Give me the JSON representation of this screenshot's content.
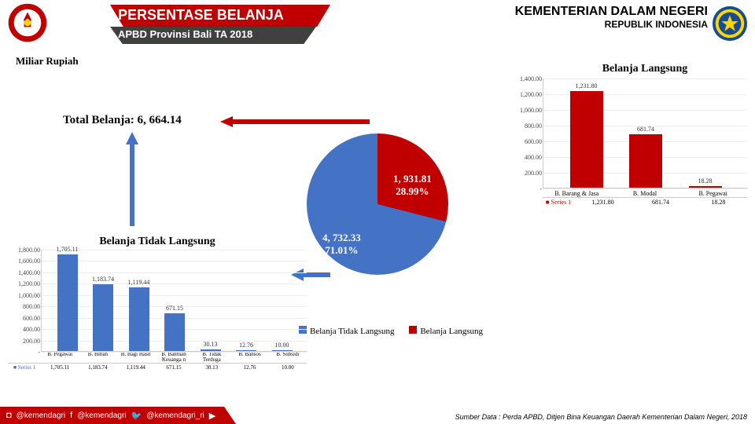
{
  "header": {
    "title": "PERSENTASE BELANJA",
    "subtitle": "APBD Provinsi Bali TA 2018",
    "ministry1": "KEMENTERIAN DALAM NEGERI",
    "ministry2": "REPUBLIK INDONESIA"
  },
  "yaxis_label": "Miliar Rupiah",
  "total_belanja_label": "Total Belanja: 6, 664.14",
  "chart_langsung": {
    "title": "Belanja Langsung",
    "ylim_max": 1400,
    "ticks": [
      "1,400.00",
      "1,200.00",
      "1,000.00",
      "800.00",
      "600.00",
      "400.00",
      "200.00",
      "-"
    ],
    "categories": [
      "B. Barang & Jasa",
      "B. Modal",
      "B. Pegawai"
    ],
    "values": [
      1231.8,
      681.74,
      18.28
    ],
    "value_labels": [
      "1,231.80",
      "681.74",
      "18.28"
    ],
    "bar_color": "#c00000",
    "series_name": "Series 1"
  },
  "pie": {
    "slice_a": {
      "label": "1, 931.81",
      "pct": "28.99%",
      "value": 1931.81,
      "color": "#c00000",
      "legend": "Belanja Langsung"
    },
    "slice_b": {
      "label": "4, 732.33",
      "pct": "71.01%",
      "value": 4732.33,
      "color": "#4472c4",
      "legend": "Belanja Tidak Langsung"
    }
  },
  "chart_tdk": {
    "title": "Belanja Tidak Langsung",
    "ylim_max": 1800,
    "ticks": [
      "1,800.00",
      "1,600.00",
      "1,400.00",
      "1,200.00",
      "1,000.00",
      "800.00",
      "600.00",
      "400.00",
      "200.00",
      "-"
    ],
    "categories": [
      "B. Pegawai",
      "B. Hibah",
      "B. Bagi Hasil",
      "B. Bantuan Keuanga n",
      "B. Tidak Terduga",
      "B. Bansos",
      "B. Subsidi"
    ],
    "values": [
      1705.11,
      1183.74,
      1119.44,
      671.15,
      30.13,
      12.76,
      10.0
    ],
    "value_labels": [
      "1,705.11",
      "1,183.74",
      "1,119.44",
      "671.15",
      "30.13",
      "12.76",
      "10.00"
    ],
    "bar_color": "#4472c4",
    "series_name": "Series 1"
  },
  "footer": {
    "h1": "@kemendagri",
    "h2": "@kemendagri",
    "h3": "@kemendagri_ri",
    "source": "Sumber Data : Perda APBD, Ditjen Bina Keuangan Daerah Kementerian Dalam Negeri, 2018"
  },
  "colors": {
    "red": "#c00000",
    "blue": "#4472c4",
    "dark": "#404040"
  }
}
